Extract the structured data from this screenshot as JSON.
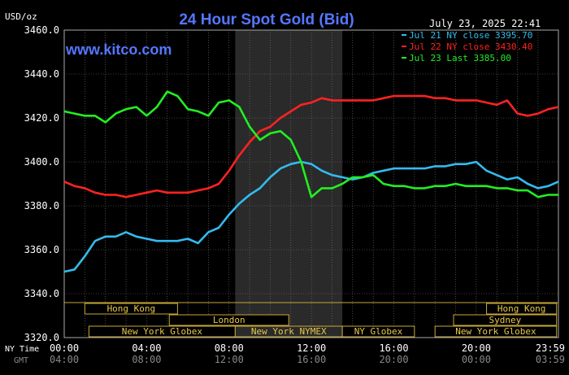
{
  "chart_data": {
    "type": "line",
    "title": "24 Hour Spot Gold (Bid)",
    "ylabel": "USD/oz",
    "watermark": "www.kitco.com",
    "timestamp": "July 23, 2025 22:41",
    "ylim": [
      3320,
      3460
    ],
    "y_ticks": [
      "3460.0",
      "3440.0",
      "3420.0",
      "3400.0",
      "3380.0",
      "3360.0",
      "3340.0",
      "3320.0"
    ],
    "x_ticks_ny": [
      "00:00",
      "04:00",
      "08:00",
      "12:00",
      "16:00",
      "20:00",
      "23:59"
    ],
    "x_ticks_gmt": [
      "04:00",
      "08:00",
      "12:00",
      "16:00",
      "20:00",
      "00:00",
      "03:59"
    ],
    "x_row_labels": {
      "ny": "NY Time",
      "gmt": "GMT"
    },
    "grid": true,
    "legend_position": "top-right",
    "shaded_session": {
      "label": "New York NYMEX",
      "start_hour": 8.3,
      "end_hour": 13.5
    },
    "sessions": [
      {
        "label": "Hong Kong",
        "row": 0,
        "start_hour": 1.0,
        "end_hour": 5.5
      },
      {
        "label": "London",
        "row": 1,
        "start_hour": 5.1,
        "end_hour": 10.9
      },
      {
        "label": "New York Globex",
        "row": 2,
        "start_hour": 1.2,
        "end_hour": 8.3
      },
      {
        "label": "New York NYMEX",
        "row": 2,
        "start_hour": 8.3,
        "end_hour": 13.5
      },
      {
        "label": "NY Globex",
        "row": 2,
        "start_hour": 13.5,
        "end_hour": 17.0
      },
      {
        "label": "Hong Kong",
        "row": 0,
        "start_hour": 20.5,
        "end_hour": 23.9
      },
      {
        "label": "Sydney",
        "row": 1,
        "start_hour": 18.9,
        "end_hour": 23.9
      },
      {
        "label": "New York Globex",
        "row": 2,
        "start_hour": 18.0,
        "end_hour": 23.9
      }
    ],
    "series": [
      {
        "name": "Jul 21 NY close 3395.70",
        "color": "#33bbee",
        "x": [
          0,
          0.5,
          1.0,
          1.5,
          2.0,
          2.5,
          3.0,
          3.5,
          4.0,
          4.5,
          5.0,
          5.5,
          6.0,
          6.5,
          7.0,
          7.5,
          8.0,
          8.5,
          9.0,
          9.5,
          10.0,
          10.5,
          11.0,
          11.5,
          12.0,
          12.5,
          13.0,
          13.5,
          14.0,
          14.5,
          15.0,
          15.5,
          16.0,
          16.5,
          17.0,
          17.5,
          18.0,
          18.5,
          19.0,
          19.5,
          20.0,
          20.5,
          21.0,
          21.5,
          22.0,
          22.5,
          23.0,
          23.5,
          23.99
        ],
        "y": [
          3350,
          3351,
          3357,
          3364,
          3366,
          3366,
          3368,
          3366,
          3365,
          3364,
          3364,
          3364,
          3365,
          3363,
          3368,
          3370,
          3376,
          3381,
          3385,
          3388,
          3393,
          3397,
          3399,
          3400,
          3399,
          3396,
          3394,
          3393,
          3392,
          3393,
          3395,
          3396,
          3397,
          3397,
          3397,
          3397,
          3398,
          3398,
          3399,
          3399,
          3400,
          3396,
          3394,
          3392,
          3393,
          3390,
          3388,
          3389,
          3391
        ]
      },
      {
        "name": "Jul 22 NY close 3430.40",
        "color": "#ff2222",
        "x": [
          0,
          0.5,
          1.0,
          1.5,
          2.0,
          2.5,
          3.0,
          3.5,
          4.0,
          4.5,
          5.0,
          5.5,
          6.0,
          6.5,
          7.0,
          7.5,
          8.0,
          8.5,
          9.0,
          9.5,
          10.0,
          10.5,
          11.0,
          11.5,
          12.0,
          12.5,
          13.0,
          13.5,
          14.0,
          14.5,
          15.0,
          15.5,
          16.0,
          16.5,
          17.0,
          17.5,
          18.0,
          18.5,
          19.0,
          19.5,
          20.0,
          20.5,
          21.0,
          21.5,
          22.0,
          22.5,
          23.0,
          23.5,
          23.99
        ],
        "y": [
          3391,
          3389,
          3388,
          3386,
          3385,
          3385,
          3384,
          3385,
          3386,
          3387,
          3386,
          3386,
          3386,
          3387,
          3388,
          3390,
          3396,
          3403,
          3409,
          3414,
          3416,
          3420,
          3423,
          3426,
          3427,
          3429,
          3428,
          3428,
          3428,
          3428,
          3428,
          3429,
          3430,
          3430,
          3430,
          3430,
          3429,
          3429,
          3428,
          3428,
          3428,
          3427,
          3426,
          3428,
          3422,
          3421,
          3422,
          3424,
          3425
        ]
      },
      {
        "name": "Jul 23 Last 3385.00",
        "color": "#22ee22",
        "x": [
          0,
          0.5,
          1.0,
          1.5,
          2.0,
          2.5,
          3.0,
          3.5,
          4.0,
          4.5,
          5.0,
          5.5,
          6.0,
          6.5,
          7.0,
          7.5,
          8.0,
          8.5,
          9.0,
          9.5,
          10.0,
          10.5,
          11.0,
          11.5,
          12.0,
          12.5,
          13.0,
          13.5,
          14.0,
          14.5,
          15.0,
          15.5,
          16.0,
          16.5,
          17.0,
          17.5,
          18.0,
          18.5,
          19.0,
          19.5,
          20.0,
          20.5,
          21.0,
          21.5,
          22.0,
          22.5,
          23.0,
          23.5,
          23.99
        ],
        "y": [
          3423,
          3422,
          3421,
          3421,
          3418,
          3422,
          3424,
          3425,
          3421,
          3425,
          3432,
          3430,
          3424,
          3423,
          3421,
          3427,
          3428,
          3425,
          3416,
          3410,
          3413,
          3414,
          3410,
          3400,
          3384,
          3388,
          3388,
          3390,
          3393,
          3393,
          3394,
          3390,
          3389,
          3389,
          3388,
          3388,
          3389,
          3389,
          3390,
          3389,
          3389,
          3389,
          3388,
          3388,
          3387,
          3387,
          3384,
          3385,
          3385
        ]
      }
    ]
  }
}
